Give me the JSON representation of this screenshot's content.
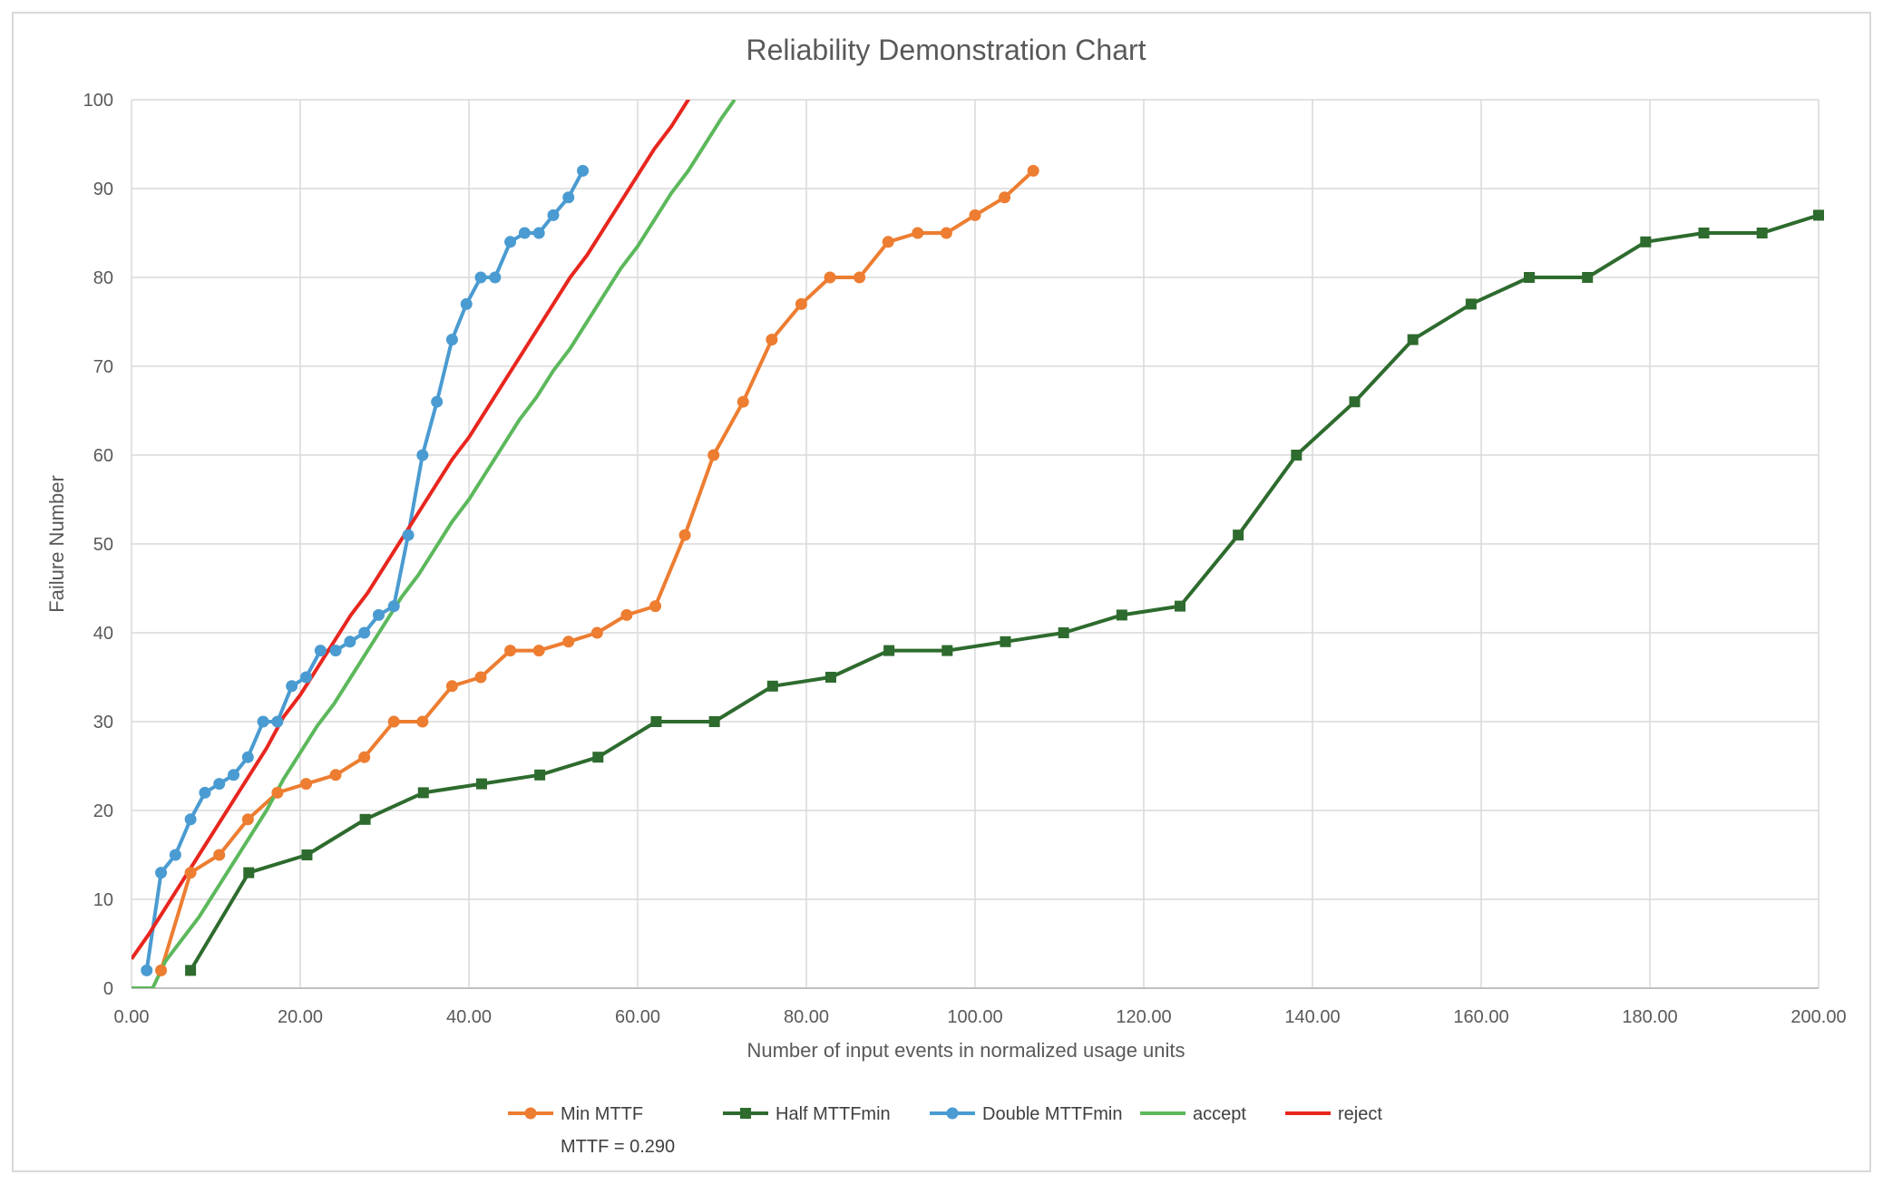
{
  "chart_data": {
    "type": "line",
    "title": "Reliability Demonstration Chart",
    "xlabel": "Number of input events in normalized usage units",
    "ylabel": "Failure Number",
    "xlim": [
      0,
      200
    ],
    "ylim": [
      0,
      100
    ],
    "x_ticks": [
      "0.00",
      "20.00",
      "40.00",
      "60.00",
      "80.00",
      "100.00",
      "120.00",
      "140.00",
      "160.00",
      "180.00",
      "200.00"
    ],
    "y_ticks": [
      "0",
      "10",
      "20",
      "30",
      "40",
      "50",
      "60",
      "70",
      "80",
      "90",
      "100"
    ],
    "grid": true,
    "legend_position": "bottom",
    "series": [
      {
        "name": "Min MTTF",
        "sublabel": "MTTF = 0.290",
        "color": "#ED7D31",
        "marker": "circle",
        "points": [
          [
            3.5,
            2
          ],
          [
            7,
            13
          ],
          [
            10.4,
            15
          ],
          [
            13.8,
            19
          ],
          [
            17.3,
            22
          ],
          [
            20.7,
            23
          ],
          [
            24.2,
            24
          ],
          [
            27.6,
            26
          ],
          [
            31.1,
            30
          ],
          [
            34.5,
            30
          ],
          [
            38,
            34
          ],
          [
            41.4,
            35
          ],
          [
            44.9,
            38
          ],
          [
            48.3,
            38
          ],
          [
            51.8,
            39
          ],
          [
            55.2,
            40
          ],
          [
            58.7,
            42
          ],
          [
            62.1,
            43
          ],
          [
            65.6,
            51
          ],
          [
            69,
            60
          ],
          [
            72.5,
            66
          ],
          [
            75.9,
            73
          ],
          [
            79.4,
            77
          ],
          [
            82.8,
            80
          ],
          [
            86.3,
            80
          ],
          [
            89.7,
            84
          ],
          [
            93.2,
            85
          ],
          [
            96.6,
            85
          ],
          [
            100,
            87
          ],
          [
            103.5,
            89
          ],
          [
            106.9,
            92
          ]
        ]
      },
      {
        "name": "Half MTTFmin",
        "color": "#2E6B2E",
        "marker": "square",
        "points": [
          [
            7,
            2
          ],
          [
            13.9,
            13
          ],
          [
            20.8,
            15
          ],
          [
            27.7,
            19
          ],
          [
            34.6,
            22
          ],
          [
            41.5,
            23
          ],
          [
            48.4,
            24
          ],
          [
            55.3,
            26
          ],
          [
            62.2,
            30
          ],
          [
            69.1,
            30
          ],
          [
            76,
            34
          ],
          [
            82.9,
            35
          ],
          [
            89.8,
            38
          ],
          [
            96.7,
            38
          ],
          [
            103.6,
            39
          ],
          [
            110.5,
            40
          ],
          [
            117.4,
            42
          ],
          [
            124.3,
            43
          ],
          [
            131.2,
            51
          ],
          [
            138.1,
            60
          ],
          [
            145,
            66
          ],
          [
            151.9,
            73
          ],
          [
            158.8,
            77
          ],
          [
            165.7,
            80
          ],
          [
            172.6,
            80
          ],
          [
            179.5,
            84
          ],
          [
            186.4,
            85
          ],
          [
            193.3,
            85
          ],
          [
            200,
            87
          ]
        ]
      },
      {
        "name": "Double MTTFmin",
        "color": "#4A9BD1",
        "marker": "circle",
        "points": [
          [
            1.8,
            2
          ],
          [
            3.5,
            13
          ],
          [
            5.2,
            15
          ],
          [
            7,
            19
          ],
          [
            8.7,
            22
          ],
          [
            10.4,
            23
          ],
          [
            12.1,
            24
          ],
          [
            13.8,
            26
          ],
          [
            15.6,
            30
          ],
          [
            17.3,
            30
          ],
          [
            19,
            34
          ],
          [
            20.7,
            35
          ],
          [
            22.4,
            38
          ],
          [
            24.2,
            38
          ],
          [
            25.9,
            39
          ],
          [
            27.6,
            40
          ],
          [
            29.3,
            42
          ],
          [
            31.1,
            43
          ],
          [
            32.8,
            51
          ],
          [
            34.5,
            60
          ],
          [
            36.2,
            66
          ],
          [
            38,
            73
          ],
          [
            39.7,
            77
          ],
          [
            41.4,
            80
          ],
          [
            43.1,
            80
          ],
          [
            44.9,
            84
          ],
          [
            46.6,
            85
          ],
          [
            48.3,
            85
          ],
          [
            50,
            87
          ],
          [
            51.8,
            89
          ],
          [
            53.5,
            92
          ]
        ]
      },
      {
        "name": "accept",
        "color": "#5CB85C",
        "marker": "none",
        "points": [
          [
            0,
            0
          ],
          [
            2.5,
            0
          ],
          [
            4,
            3
          ],
          [
            6,
            5.5
          ],
          [
            8,
            8
          ],
          [
            10,
            11
          ],
          [
            12,
            14
          ],
          [
            14,
            17
          ],
          [
            16,
            20
          ],
          [
            18,
            23.5
          ],
          [
            20,
            26.5
          ],
          [
            22,
            29.5
          ],
          [
            24,
            32
          ],
          [
            26,
            35
          ],
          [
            28,
            38
          ],
          [
            30,
            41
          ],
          [
            32,
            44
          ],
          [
            34,
            46.5
          ],
          [
            36,
            49.5
          ],
          [
            38,
            52.5
          ],
          [
            40,
            55
          ],
          [
            42,
            58
          ],
          [
            44,
            61
          ],
          [
            46,
            64
          ],
          [
            48,
            66.5
          ],
          [
            50,
            69.5
          ],
          [
            52,
            72
          ],
          [
            54,
            75
          ],
          [
            56,
            78
          ],
          [
            58,
            81
          ],
          [
            60,
            83.5
          ],
          [
            62,
            86.5
          ],
          [
            64,
            89.5
          ],
          [
            66,
            92
          ],
          [
            68,
            95
          ],
          [
            70,
            98
          ],
          [
            71.5,
            100
          ]
        ]
      },
      {
        "name": "reject",
        "color": "#E8261E",
        "marker": "none",
        "points": [
          [
            0,
            3.3
          ],
          [
            2,
            6
          ],
          [
            4,
            9
          ],
          [
            6,
            12
          ],
          [
            8,
            15
          ],
          [
            10,
            18
          ],
          [
            12,
            21
          ],
          [
            14,
            24
          ],
          [
            16,
            27
          ],
          [
            18,
            30.5
          ],
          [
            20,
            33
          ],
          [
            22,
            36
          ],
          [
            24,
            39
          ],
          [
            26,
            42
          ],
          [
            28,
            44.5
          ],
          [
            30,
            47.5
          ],
          [
            32,
            50.5
          ],
          [
            34,
            53.5
          ],
          [
            36,
            56.5
          ],
          [
            38,
            59.5
          ],
          [
            40,
            62
          ],
          [
            42,
            65
          ],
          [
            44,
            68
          ],
          [
            46,
            71
          ],
          [
            48,
            74
          ],
          [
            50,
            77
          ],
          [
            52,
            80
          ],
          [
            54,
            82.5
          ],
          [
            56,
            85.5
          ],
          [
            58,
            88.5
          ],
          [
            60,
            91.5
          ],
          [
            62,
            94.5
          ],
          [
            64,
            97
          ],
          [
            66,
            100
          ],
          [
            67.5,
            102
          ]
        ]
      }
    ]
  }
}
